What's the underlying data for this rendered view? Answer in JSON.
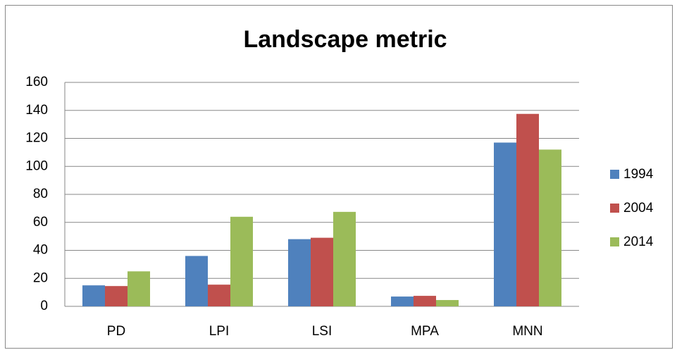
{
  "chart_data": {
    "type": "bar",
    "title": "Landscape metric",
    "categories": [
      "PD",
      "LPI",
      "LSI",
      "MPA",
      "MNN"
    ],
    "series": [
      {
        "name": "1994",
        "color": "#4f81bd",
        "values": [
          15,
          36,
          48,
          7,
          117
        ]
      },
      {
        "name": "2004",
        "color": "#c0504d",
        "values": [
          14.5,
          15.5,
          49,
          7.5,
          137.5
        ]
      },
      {
        "name": "2014",
        "color": "#9bbb59",
        "values": [
          25,
          64,
          67.5,
          4.5,
          112
        ]
      }
    ],
    "ylim": [
      0,
      160
    ],
    "yticks": [
      0,
      20,
      40,
      60,
      80,
      100,
      120,
      140,
      160
    ],
    "grid": true,
    "legend": "right"
  }
}
